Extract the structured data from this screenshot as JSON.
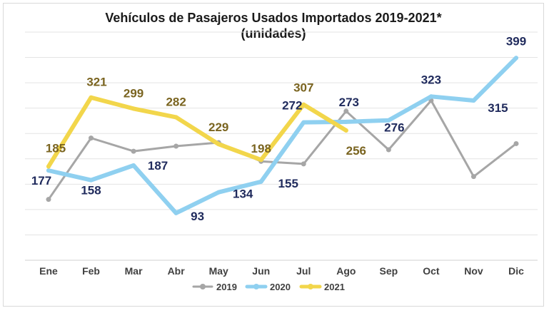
{
  "chart_data": {
    "type": "line",
    "title": "Vehículos de Pasajeros Usados Importados 2019-2021*",
    "subtitle": "(unidades)",
    "xlabel": "",
    "ylabel": "",
    "ylim": [
      0,
      450
    ],
    "grid": true,
    "legend_position": "bottom",
    "categories": [
      "Ene",
      "Feb",
      "Mar",
      "Abr",
      "May",
      "Jun",
      "Jul",
      "Ago",
      "Sep",
      "Oct",
      "Nov",
      "Dic"
    ],
    "series": [
      {
        "name": "2019",
        "color": "#a6a6a6",
        "values": [
          120,
          241,
          215,
          225,
          232,
          195,
          190,
          294,
          218,
          315,
          165,
          230
        ],
        "labels": [
          null,
          null,
          null,
          null,
          null,
          null,
          null,
          null,
          null,
          null,
          null,
          null
        ]
      },
      {
        "name": "2020",
        "color": "#8fd0f0",
        "values": [
          177,
          158,
          187,
          93,
          134,
          155,
          272,
          273,
          276,
          323,
          315,
          399
        ],
        "labels": [
          "177",
          "158",
          "187",
          "93",
          "134",
          "155",
          "272",
          "273",
          "276",
          "323",
          "315",
          "399"
        ],
        "label_color": "#1f2a5c"
      },
      {
        "name": "2021",
        "color": "#f2d64b",
        "values": [
          185,
          321,
          299,
          282,
          229,
          198,
          307,
          256,
          null,
          null,
          null,
          null
        ],
        "labels": [
          "185",
          "321",
          "299",
          "282",
          "229",
          "198",
          "307",
          "256",
          null,
          null,
          null,
          null
        ],
        "label_color": "#7a6420"
      }
    ]
  }
}
